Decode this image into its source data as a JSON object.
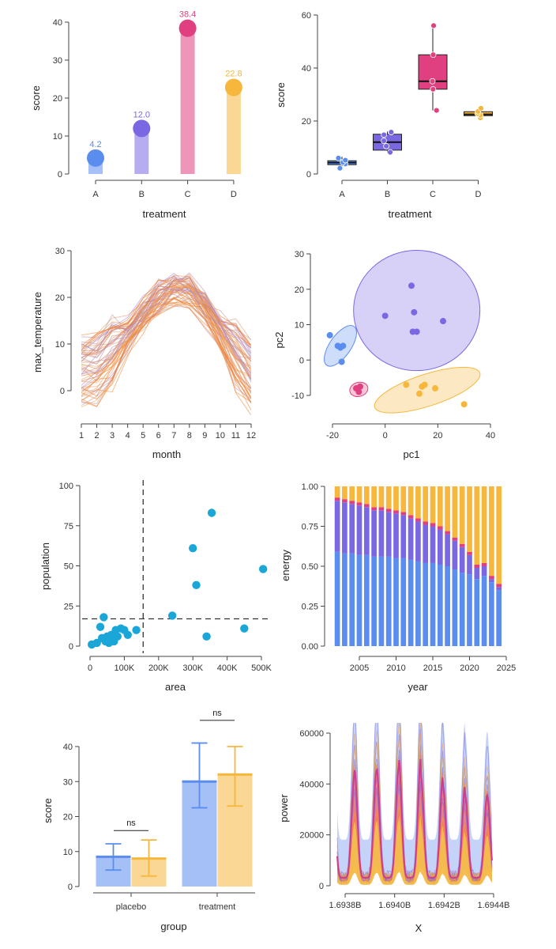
{
  "chart_data": [
    {
      "id": "lollipop",
      "type": "bar",
      "subtype": "lollipop",
      "title": "",
      "xlabel": "treatment",
      "ylabel": "score",
      "ylim": [
        0,
        42
      ],
      "yticks": [
        0,
        10,
        20,
        30,
        40
      ],
      "categories": [
        "A",
        "B",
        "C",
        "D"
      ],
      "values": [
        4.2,
        12.0,
        38.4,
        22.8
      ],
      "value_labels": [
        "4.2",
        "12.0",
        "38.4",
        "22.8"
      ],
      "colors": [
        "#5b8def",
        "#7a68e3",
        "#e0407f",
        "#f6b73c"
      ]
    },
    {
      "id": "boxplot",
      "type": "box",
      "title": "",
      "xlabel": "treatment",
      "ylabel": "score",
      "ylim": [
        0,
        60
      ],
      "yticks": [
        0,
        20,
        40,
        60
      ],
      "categories": [
        "A",
        "B",
        "C",
        "D"
      ],
      "colors": [
        "#5b8def",
        "#7a68e3",
        "#e0407f",
        "#f6b73c"
      ],
      "boxes": [
        {
          "min": 2,
          "q1": 3.5,
          "median": 4.3,
          "q3": 5,
          "max": 6.5,
          "points": [
            2.2,
            3.8,
            4.4,
            5.2,
            6.0
          ]
        },
        {
          "min": 8,
          "q1": 9,
          "median": 12,
          "q3": 15,
          "max": 16,
          "points": [
            8.2,
            10.5,
            12.5,
            14.8,
            15.8
          ]
        },
        {
          "min": 24,
          "q1": 32,
          "median": 35,
          "q3": 45,
          "max": 56,
          "points": [
            24,
            32,
            35,
            45,
            56
          ]
        },
        {
          "min": 21,
          "q1": 22,
          "median": 22.5,
          "q3": 23.5,
          "max": 25,
          "points": [
            21.2,
            22.2,
            22.8,
            23.6,
            24.8
          ]
        }
      ]
    },
    {
      "id": "spaghetti",
      "type": "line",
      "title": "",
      "xlabel": "month",
      "ylabel": "max_temperature",
      "xlim": [
        1,
        12
      ],
      "ylim": [
        -5,
        30
      ],
      "xticks": [
        1,
        2,
        3,
        4,
        5,
        6,
        7,
        8,
        9,
        10,
        11,
        12
      ],
      "yticks": [
        0,
        10,
        20,
        30
      ],
      "series_count": 60,
      "mean_curve": [
        3.5,
        4.5,
        7.5,
        11.5,
        16,
        19.5,
        21.5,
        21,
        17.5,
        12.5,
        7,
        2.5
      ],
      "color_range": [
        "#9b7fe0",
        "#f4a24a",
        "#f06a1c"
      ]
    },
    {
      "id": "pca",
      "type": "scatter",
      "title": "",
      "xlabel": "pc1",
      "ylabel": "pc2",
      "xlim": [
        -25,
        42
      ],
      "ylim": [
        -16,
        31
      ],
      "xticks": [
        -20,
        0,
        20,
        40
      ],
      "yticks": [
        -10,
        0,
        10,
        20,
        30
      ],
      "series": [
        {
          "name": "blue",
          "color": "#5b8def",
          "x": [
            -21,
            -18,
            -17,
            -16,
            -16.5
          ],
          "y": [
            7,
            4,
            3.5,
            4,
            -0.5
          ],
          "ellipse": {
            "cx": -17,
            "cy": 4,
            "rx": 9,
            "ry": 3,
            "angle_deg": -55
          }
        },
        {
          "name": "pink",
          "color": "#e0407f",
          "x": [
            -11,
            -10,
            -9.5
          ],
          "y": [
            -8,
            -9,
            -7.5
          ],
          "ellipse": {
            "cx": -10,
            "cy": -8.3,
            "rx": 3.5,
            "ry": 2,
            "angle_deg": -15
          }
        },
        {
          "name": "purple",
          "color": "#7a68e3",
          "x": [
            0,
            10,
            11,
            12,
            22,
            10.5
          ],
          "y": [
            12.5,
            21,
            13.5,
            8,
            11,
            8
          ],
          "ellipse": {
            "cx": 12,
            "cy": 14,
            "rx": 24,
            "ry": 17,
            "angle_deg": 0
          }
        },
        {
          "name": "orange",
          "color": "#f6b73c",
          "x": [
            8,
            13,
            15,
            19,
            30,
            14
          ],
          "y": [
            -7,
            -9.5,
            -7,
            -8,
            -12.5,
            -7.5
          ],
          "ellipse": {
            "cx": 16,
            "cy": -8.5,
            "rx": 21,
            "ry": 4.5,
            "angle_deg": -18
          }
        }
      ]
    },
    {
      "id": "quadrant",
      "type": "scatter",
      "title": "",
      "xlabel": "area",
      "ylabel": "population",
      "xlim": [
        -10000,
        520000
      ],
      "ylim": [
        -3,
        100
      ],
      "xticks": [
        0,
        100000,
        200000,
        300000,
        400000,
        500000
      ],
      "xtick_labels": [
        "0",
        "100K",
        "200K",
        "300K",
        "400K",
        "500K"
      ],
      "yticks": [
        0,
        25,
        50,
        75,
        100
      ],
      "vline": 155000,
      "hline": 17,
      "color": "#1aa7d8",
      "x": [
        5000,
        20000,
        30000,
        35000,
        40000,
        45000,
        50000,
        55000,
        60000,
        62000,
        70000,
        75000,
        80000,
        90000,
        100000,
        110000,
        135000,
        240000,
        300000,
        310000,
        340000,
        355000,
        450000,
        505000
      ],
      "y": [
        1,
        2,
        12,
        5,
        18,
        3,
        6,
        2,
        4,
        7,
        3,
        10,
        6,
        11,
        10,
        7,
        10,
        19,
        61,
        38,
        6,
        83,
        11,
        48
      ]
    },
    {
      "id": "stacked",
      "type": "bar",
      "subtype": "stacked-100",
      "title": "",
      "xlabel": "year",
      "ylabel": "energy",
      "ylim": [
        0,
        1
      ],
      "yticks": [
        0.0,
        0.25,
        0.5,
        0.75,
        1.0
      ],
      "ytick_labels": [
        "0.00",
        "0.25",
        "0.50",
        "0.75",
        "1.00"
      ],
      "xticks": [
        2005,
        2010,
        2015,
        2020,
        2025
      ],
      "categories": [
        2002,
        2003,
        2004,
        2005,
        2006,
        2007,
        2008,
        2009,
        2010,
        2011,
        2012,
        2013,
        2014,
        2015,
        2016,
        2017,
        2018,
        2019,
        2020,
        2021,
        2022,
        2023,
        2024
      ],
      "series": [
        {
          "name": "blue",
          "color": "#5b8def",
          "values": [
            0.59,
            0.58,
            0.58,
            0.57,
            0.57,
            0.56,
            0.56,
            0.56,
            0.55,
            0.55,
            0.54,
            0.53,
            0.52,
            0.52,
            0.51,
            0.5,
            0.48,
            0.46,
            0.45,
            0.42,
            0.44,
            0.4,
            0.35
          ]
        },
        {
          "name": "purple",
          "color": "#7a68e3",
          "values": [
            0.32,
            0.32,
            0.31,
            0.31,
            0.3,
            0.29,
            0.29,
            0.28,
            0.28,
            0.27,
            0.26,
            0.25,
            0.24,
            0.23,
            0.22,
            0.2,
            0.18,
            0.16,
            0.12,
            0.07,
            0.06,
            0.02,
            0.02
          ]
        },
        {
          "name": "pink",
          "color": "#e0407f",
          "values": [
            0.02,
            0.02,
            0.02,
            0.02,
            0.02,
            0.02,
            0.02,
            0.02,
            0.02,
            0.02,
            0.02,
            0.02,
            0.02,
            0.02,
            0.02,
            0.02,
            0.02,
            0.02,
            0.02,
            0.02,
            0.02,
            0.02,
            0.02
          ]
        },
        {
          "name": "orange",
          "color": "#f6b73c",
          "values": [
            0.07,
            0.08,
            0.09,
            0.1,
            0.11,
            0.13,
            0.13,
            0.14,
            0.15,
            0.16,
            0.18,
            0.2,
            0.22,
            0.23,
            0.25,
            0.28,
            0.32,
            0.36,
            0.41,
            0.49,
            0.48,
            0.56,
            0.61
          ]
        }
      ]
    },
    {
      "id": "grouped",
      "type": "bar",
      "subtype": "grouped-errorbar",
      "title": "",
      "xlabel": "group",
      "ylabel": "score",
      "ylim": [
        0,
        44
      ],
      "yticks": [
        0,
        10,
        20,
        30,
        40
      ],
      "categories": [
        "placebo",
        "treatment"
      ],
      "series": [
        {
          "name": "blue",
          "color": "#5b8def",
          "values": [
            8.5,
            30
          ],
          "err_low": [
            4.7,
            22.5
          ],
          "err_high": [
            12.2,
            41
          ]
        },
        {
          "name": "orange",
          "color": "#f6b73c",
          "values": [
            8,
            32
          ],
          "err_low": [
            3,
            23
          ],
          "err_high": [
            13.3,
            40
          ]
        }
      ],
      "annotations": [
        {
          "category": "placebo",
          "text": "ns",
          "y": 16
        },
        {
          "category": "treatment",
          "text": "ns",
          "y": 47.5
        }
      ]
    },
    {
      "id": "ribbon",
      "type": "area",
      "title": "",
      "xlabel": "X",
      "ylabel": "power",
      "xlim": [
        1693780000,
        1694420000
      ],
      "ylim": [
        -2000,
        65000
      ],
      "xticks": [
        1693800000,
        1694000000,
        1694200000,
        1694400000
      ],
      "xtick_labels": [
        "1.6938B",
        "1.6940B",
        "1.6942B",
        "1.6944B"
      ],
      "yticks": [
        0,
        20000,
        40000,
        60000
      ],
      "peaks": 7,
      "peak_values": [
        45000,
        47000,
        48000,
        52000,
        44000,
        40000,
        36000
      ],
      "band_colors": [
        "#7f9ef0",
        "#f26d63",
        "#f6b73c",
        "#d03a8f"
      ]
    }
  ]
}
